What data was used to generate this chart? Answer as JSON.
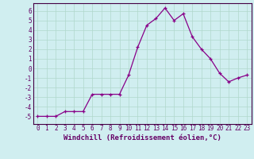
{
  "x": [
    0,
    1,
    2,
    3,
    4,
    5,
    6,
    7,
    8,
    9,
    10,
    11,
    12,
    13,
    14,
    15,
    16,
    17,
    18,
    19,
    20,
    21,
    22,
    23
  ],
  "y": [
    -5,
    -5,
    -5,
    -4.5,
    -4.5,
    -4.5,
    -2.7,
    -2.7,
    -2.7,
    -2.7,
    -0.7,
    2.2,
    4.5,
    5.2,
    6.3,
    5.0,
    5.7,
    3.3,
    2.0,
    1.0,
    -0.5,
    -1.4,
    -1.0,
    -0.7
  ],
  "line_color": "#880088",
  "marker": "+",
  "bg_color": "#d0eef0",
  "grid_color": "#b0d8cc",
  "axis_color": "#660066",
  "spine_color": "#440044",
  "xlabel": "Windchill (Refroidissement éolien,°C)",
  "ylim": [
    -5.8,
    6.8
  ],
  "xlim": [
    -0.5,
    23.5
  ],
  "yticks": [
    -5,
    -4,
    -3,
    -2,
    -1,
    0,
    1,
    2,
    3,
    4,
    5,
    6
  ],
  "xticks": [
    0,
    1,
    2,
    3,
    4,
    5,
    6,
    7,
    8,
    9,
    10,
    11,
    12,
    13,
    14,
    15,
    16,
    17,
    18,
    19,
    20,
    21,
    22,
    23
  ],
  "xlabel_fontsize": 6.5,
  "tick_fontsize": 5.5,
  "marker_size": 3,
  "line_width": 0.9
}
